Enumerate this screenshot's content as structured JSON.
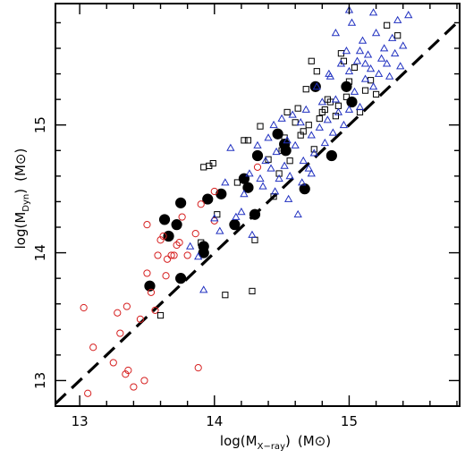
{
  "chart_data": {
    "type": "scatter",
    "title": "",
    "xlabel": {
      "main": "log(M",
      "sub": "X−ray",
      "close": ")",
      "unit": "(M⊙)"
    },
    "ylabel": {
      "main": "log(M",
      "sub": "Dyn",
      "close": ")",
      "unit": "(M⊙)"
    },
    "xlim": [
      12.82,
      15.82
    ],
    "ylim": [
      12.8,
      15.95
    ],
    "x_ticks": [
      13,
      14,
      15
    ],
    "y_ticks": [
      13,
      14,
      15
    ],
    "x_tick_labels": [
      "13",
      "14",
      "15"
    ],
    "y_tick_labels": [
      "13",
      "14",
      "15"
    ],
    "grid": false,
    "legend": "none",
    "reference_line": {
      "style": "dashed",
      "color": "#000000",
      "points": [
        [
          12.82,
          12.82
        ],
        [
          15.82,
          15.82
        ]
      ]
    },
    "series": [
      {
        "marker": "filled-circle",
        "color": "#000000",
        "points": [
          [
            13.52,
            13.74
          ],
          [
            13.75,
            13.8
          ],
          [
            13.63,
            14.26
          ],
          [
            13.66,
            14.13
          ],
          [
            13.72,
            14.22
          ],
          [
            13.75,
            14.39
          ],
          [
            13.92,
            14.0
          ],
          [
            13.92,
            14.05
          ],
          [
            13.95,
            14.42
          ],
          [
            14.05,
            14.46
          ],
          [
            14.15,
            14.22
          ],
          [
            14.22,
            14.58
          ],
          [
            14.25,
            14.51
          ],
          [
            14.3,
            14.3
          ],
          [
            14.32,
            14.76
          ],
          [
            14.47,
            14.93
          ],
          [
            14.52,
            14.85
          ],
          [
            14.53,
            14.8
          ],
          [
            14.67,
            14.5
          ],
          [
            14.75,
            15.3
          ],
          [
            14.87,
            14.76
          ],
          [
            14.98,
            15.3
          ],
          [
            15.02,
            15.18
          ]
        ]
      },
      {
        "marker": "open-circle",
        "color": "#d62020",
        "points": [
          [
            13.03,
            13.57
          ],
          [
            13.1,
            13.26
          ],
          [
            13.06,
            12.9
          ],
          [
            13.25,
            13.14
          ],
          [
            13.28,
            13.53
          ],
          [
            13.3,
            13.37
          ],
          [
            13.35,
            13.58
          ],
          [
            13.34,
            13.05
          ],
          [
            13.36,
            13.08
          ],
          [
            13.4,
            12.95
          ],
          [
            13.45,
            13.48
          ],
          [
            13.48,
            13.0
          ],
          [
            13.5,
            13.84
          ],
          [
            13.5,
            14.22
          ],
          [
            13.53,
            13.69
          ],
          [
            13.56,
            13.55
          ],
          [
            13.58,
            13.98
          ],
          [
            13.6,
            14.1
          ],
          [
            13.62,
            14.13
          ],
          [
            13.64,
            13.82
          ],
          [
            13.65,
            13.95
          ],
          [
            13.68,
            13.98
          ],
          [
            13.7,
            13.98
          ],
          [
            13.72,
            14.06
          ],
          [
            13.74,
            14.08
          ],
          [
            13.76,
            14.28
          ],
          [
            13.8,
            13.98
          ],
          [
            13.86,
            14.15
          ],
          [
            13.88,
            13.1
          ],
          [
            13.9,
            14.38
          ],
          [
            14.0,
            14.25
          ],
          [
            14.0,
            14.48
          ],
          [
            14.32,
            14.67
          ]
        ]
      },
      {
        "marker": "open-square",
        "color": "#000000",
        "points": [
          [
            13.6,
            13.51
          ],
          [
            13.9,
            14.08
          ],
          [
            13.92,
            14.67
          ],
          [
            13.96,
            14.68
          ],
          [
            13.99,
            14.7
          ],
          [
            14.02,
            14.3
          ],
          [
            14.08,
            13.67
          ],
          [
            14.17,
            14.55
          ],
          [
            14.22,
            14.88
          ],
          [
            14.25,
            14.88
          ],
          [
            14.28,
            13.7
          ],
          [
            14.3,
            14.1
          ],
          [
            14.34,
            14.99
          ],
          [
            14.4,
            14.73
          ],
          [
            14.44,
            14.44
          ],
          [
            14.48,
            14.62
          ],
          [
            14.5,
            14.8
          ],
          [
            14.52,
            14.9
          ],
          [
            14.54,
            15.1
          ],
          [
            14.56,
            14.72
          ],
          [
            14.6,
            15.02
          ],
          [
            14.62,
            15.13
          ],
          [
            14.64,
            14.92
          ],
          [
            14.66,
            14.95
          ],
          [
            14.68,
            15.28
          ],
          [
            14.7,
            15.0
          ],
          [
            14.72,
            15.5
          ],
          [
            14.74,
            14.81
          ],
          [
            14.76,
            15.42
          ],
          [
            14.78,
            15.05
          ],
          [
            14.8,
            15.1
          ],
          [
            14.82,
            15.12
          ],
          [
            14.84,
            15.2
          ],
          [
            14.86,
            15.18
          ],
          [
            14.9,
            15.07
          ],
          [
            14.92,
            15.15
          ],
          [
            14.94,
            15.56
          ],
          [
            14.96,
            15.5
          ],
          [
            14.98,
            15.22
          ],
          [
            15.0,
            15.34
          ],
          [
            15.04,
            15.45
          ],
          [
            15.08,
            15.1
          ],
          [
            15.12,
            15.27
          ],
          [
            15.16,
            15.35
          ],
          [
            15.2,
            15.24
          ],
          [
            15.28,
            15.78
          ],
          [
            15.36,
            15.7
          ]
        ]
      },
      {
        "marker": "open-triangle",
        "color": "#2030c0",
        "points": [
          [
            13.82,
            14.05
          ],
          [
            13.88,
            13.97
          ],
          [
            13.92,
            13.71
          ],
          [
            14.0,
            14.27
          ],
          [
            14.04,
            14.17
          ],
          [
            14.08,
            14.55
          ],
          [
            14.12,
            14.82
          ],
          [
            14.16,
            14.28
          ],
          [
            14.2,
            14.32
          ],
          [
            14.22,
            14.46
          ],
          [
            14.26,
            14.62
          ],
          [
            14.28,
            14.14
          ],
          [
            14.32,
            14.84
          ],
          [
            14.34,
            14.58
          ],
          [
            14.36,
            14.52
          ],
          [
            14.38,
            14.72
          ],
          [
            14.4,
            14.9
          ],
          [
            14.42,
            14.66
          ],
          [
            14.44,
            15.0
          ],
          [
            14.45,
            14.48
          ],
          [
            14.46,
            14.79
          ],
          [
            14.48,
            14.58
          ],
          [
            14.5,
            15.05
          ],
          [
            14.52,
            14.68
          ],
          [
            14.54,
            14.88
          ],
          [
            14.55,
            14.42
          ],
          [
            14.56,
            14.6
          ],
          [
            14.58,
            15.08
          ],
          [
            14.6,
            14.84
          ],
          [
            14.62,
            14.3
          ],
          [
            14.64,
            15.02
          ],
          [
            14.65,
            14.55
          ],
          [
            14.66,
            14.72
          ],
          [
            14.68,
            15.12
          ],
          [
            14.7,
            14.66
          ],
          [
            14.72,
            14.92
          ],
          [
            14.74,
            14.78
          ],
          [
            14.76,
            15.3
          ],
          [
            14.78,
            14.98
          ],
          [
            14.8,
            15.18
          ],
          [
            14.82,
            14.86
          ],
          [
            14.84,
            15.04
          ],
          [
            14.86,
            15.38
          ],
          [
            14.88,
            14.94
          ],
          [
            14.9,
            15.2
          ],
          [
            14.92,
            15.1
          ],
          [
            14.94,
            15.48
          ],
          [
            14.96,
            15.0
          ],
          [
            14.98,
            15.58
          ],
          [
            15.0,
            15.12
          ],
          [
            15.02,
            15.8
          ],
          [
            15.04,
            15.26
          ],
          [
            15.06,
            15.5
          ],
          [
            15.08,
            15.14
          ],
          [
            15.1,
            15.66
          ],
          [
            15.12,
            15.36
          ],
          [
            15.14,
            15.55
          ],
          [
            15.16,
            15.44
          ],
          [
            15.18,
            15.3
          ],
          [
            15.2,
            15.72
          ],
          [
            15.22,
            15.4
          ],
          [
            15.24,
            15.52
          ],
          [
            15.26,
            15.6
          ],
          [
            15.28,
            15.48
          ],
          [
            15.3,
            15.38
          ],
          [
            15.32,
            15.68
          ],
          [
            15.34,
            15.56
          ],
          [
            15.36,
            15.82
          ],
          [
            15.38,
            15.46
          ],
          [
            15.4,
            15.62
          ],
          [
            15.44,
            15.86
          ],
          [
            14.85,
            15.4
          ],
          [
            14.9,
            15.72
          ],
          [
            15.0,
            15.9
          ],
          [
            15.0,
            15.42
          ],
          [
            15.08,
            15.58
          ],
          [
            15.12,
            15.48
          ],
          [
            15.18,
            15.88
          ],
          [
            14.72,
            14.62
          ]
        ]
      }
    ]
  }
}
